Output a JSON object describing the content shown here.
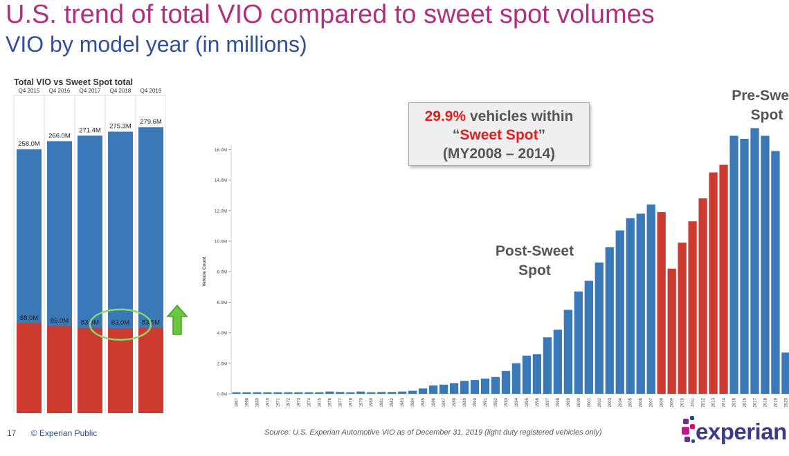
{
  "header": {
    "title": "U.S. trend of total VIO compared to sweet spot volumes",
    "subtitle": "VIO by model year (in millions)"
  },
  "colors": {
    "blue": "#3b78b8",
    "red": "#cc3a30",
    "circle": "#8ed56b",
    "arrow": "#69c93d"
  },
  "chart_data": [
    {
      "type": "bar",
      "title": "Total VIO vs Sweet Spot total",
      "categories": [
        "Q4 2015",
        "Q4 2016",
        "Q4 2017",
        "Q4 2018",
        "Q4 2019"
      ],
      "series": [
        {
          "name": "Total VIO",
          "values": [
            258.0,
            266.0,
            271.4,
            275.3,
            279.6
          ],
          "labels": [
            "258.0M",
            "266.0M",
            "271.4M",
            "275.3M",
            "279.6M"
          ]
        },
        {
          "name": "Sweet Spot",
          "values": [
            88.0,
            85.0,
            83.3,
            83.0,
            83.5
          ],
          "labels": [
            "88.0M",
            "85.0M",
            "83.3M",
            "83.0M",
            "83.5M"
          ]
        }
      ]
    },
    {
      "type": "bar",
      "ylabel": "Vehicle Count",
      "ylim": [
        0,
        17.5
      ],
      "yticks": [
        0,
        2,
        4,
        6,
        8,
        10,
        12,
        14,
        16
      ],
      "ytick_labels": [
        "0.0M",
        "2.0M",
        "4.0M",
        "6.0M",
        "8.0M",
        "10.0M",
        "12.0M",
        "14.0M",
        "16.0M"
      ],
      "categories": [
        "1967",
        "1968",
        "1969",
        "1970",
        "1971",
        "1972",
        "1973",
        "1974",
        "1975",
        "1976",
        "1977",
        "1978",
        "1979",
        "1980",
        "1981",
        "1982",
        "1983",
        "1984",
        "1985",
        "1986",
        "1987",
        "1988",
        "1989",
        "1990",
        "1991",
        "1992",
        "1993",
        "1994",
        "1995",
        "1996",
        "1997",
        "1998",
        "1999",
        "2000",
        "2001",
        "2002",
        "2003",
        "2004",
        "2005",
        "2006",
        "2007",
        "2008",
        "2009",
        "2010",
        "2011",
        "2012",
        "2013",
        "2014",
        "2015",
        "2016",
        "2017",
        "2018",
        "2019",
        "2020"
      ],
      "values": [
        0.1,
        0.1,
        0.1,
        0.1,
        0.1,
        0.1,
        0.1,
        0.1,
        0.1,
        0.15,
        0.12,
        0.1,
        0.15,
        0.1,
        0.12,
        0.12,
        0.15,
        0.2,
        0.35,
        0.55,
        0.6,
        0.7,
        0.85,
        0.9,
        1.0,
        1.1,
        1.5,
        2.0,
        2.5,
        2.6,
        3.7,
        4.2,
        5.5,
        6.7,
        7.4,
        8.6,
        9.6,
        10.7,
        11.5,
        11.8,
        12.4,
        11.9,
        8.2,
        9.9,
        11.3,
        12.8,
        14.5,
        15.0,
        16.9,
        16.7,
        17.4,
        16.9,
        15.9,
        2.7
      ],
      "sweet_spot_range": [
        "2008",
        "2014"
      ]
    }
  ],
  "callout": {
    "percent": "29.9%",
    "line1_rest": " vehicles within",
    "q_open": "“",
    "sweet": "Sweet Spot",
    "q_close": "”",
    "line3": "(MY2008 – 2014)"
  },
  "annotations": {
    "post_line1": "Post-Sweet",
    "post_line2": "Spot",
    "pre_line1": "Pre-Sweet",
    "pre_line2": "Spot"
  },
  "footer": {
    "page": "17",
    "classification": "© Experian Public",
    "source": "Source: U.S. Experian Automotive VIO as of December 31, 2019  (light duty registered vehicles only)"
  },
  "logo": {
    "text": "experian"
  }
}
